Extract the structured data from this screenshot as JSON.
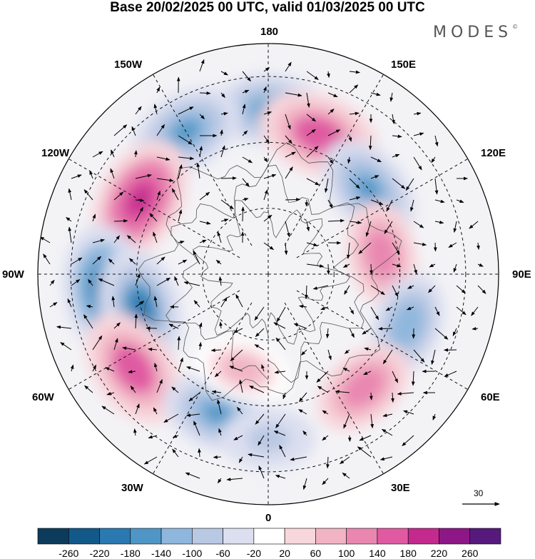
{
  "title": "Base 20/02/2025 00 UTC, valid 01/03/2025 00 UTC",
  "brand": "MODES",
  "brand_mark": "©",
  "longitude_labels": {
    "top": "180",
    "bottom": "0",
    "left": "90W",
    "right": "90E",
    "upper_left_1": "150W",
    "upper_left_2": "120W",
    "upper_right_1": "150E",
    "upper_right_2": "120E",
    "lower_left_1": "60W",
    "lower_left_2": "30W",
    "lower_right_1": "60E",
    "lower_right_2": "30E"
  },
  "reference_vector_label": "30",
  "colorbar": {
    "ticks": [
      "-260",
      "-220",
      "-180",
      "-140",
      "-100",
      "-60",
      "-20",
      "20",
      "60",
      "100",
      "140",
      "180",
      "220",
      "260"
    ],
    "colors": [
      "#0d3b5c",
      "#12598a",
      "#2a79b1",
      "#4f96c6",
      "#8fb7dd",
      "#b9c8e3",
      "#dcdff0",
      "#ffffff",
      "#f8d7dc",
      "#f1b4c4",
      "#e987b1",
      "#e05aa2",
      "#c42a8e",
      "#8e1787",
      "#561a7c"
    ]
  },
  "chart_data": {
    "type": "heatmap",
    "projection": "north polar stereographic",
    "field": "anomaly contours with wind vectors",
    "color_levels": [
      -260,
      -220,
      -180,
      -140,
      -100,
      -60,
      -20,
      20,
      60,
      100,
      140,
      180,
      220,
      260
    ],
    "anomaly_centers": [
      {
        "lon_deg": -180,
        "lat_deg": 40,
        "value": -140
      },
      {
        "lon_deg": -150,
        "lat_deg": 40,
        "value": -160
      },
      {
        "lon_deg": 160,
        "lat_deg": 45,
        "value": 180
      },
      {
        "lon_deg": 130,
        "lat_deg": 50,
        "value": -150
      },
      {
        "lon_deg": -120,
        "lat_deg": 45,
        "value": 200
      },
      {
        "lon_deg": 100,
        "lat_deg": 55,
        "value": 120
      },
      {
        "lon_deg": -85,
        "lat_deg": 40,
        "value": -200
      },
      {
        "lon_deg": -75,
        "lat_deg": 50,
        "value": -180
      },
      {
        "lon_deg": 70,
        "lat_deg": 45,
        "value": -120
      },
      {
        "lon_deg": -55,
        "lat_deg": 40,
        "value": 180
      },
      {
        "lon_deg": 40,
        "lat_deg": 45,
        "value": 120
      },
      {
        "lon_deg": -20,
        "lat_deg": 45,
        "value": -140
      },
      {
        "lon_deg": 0,
        "lat_deg": 40,
        "value": -80
      },
      {
        "lon_deg": -15,
        "lat_deg": 60,
        "value": 80
      }
    ]
  }
}
